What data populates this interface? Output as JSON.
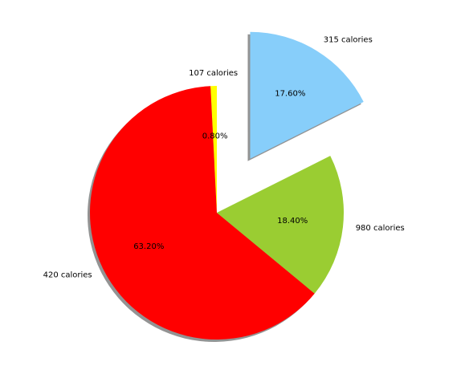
{
  "chart_data": {
    "type": "pie",
    "title": "",
    "start_angle_deg": 90,
    "direction": "counterclockwise",
    "shadow": true,
    "slices": [
      {
        "label": "107 calories",
        "value": 0.8,
        "pct_text": "0.80%",
        "color": "#ffff00",
        "explode": 0
      },
      {
        "label": "420 calories",
        "value": 63.2,
        "pct_text": "63.20%",
        "color": "#ff0000",
        "explode": 0
      },
      {
        "label": "980 calories",
        "value": 18.4,
        "pct_text": "18.40%",
        "color": "#9acd32",
        "explode": 0
      },
      {
        "label": "315 calories",
        "value": 17.6,
        "pct_text": "17.60%",
        "color": "#87cefa",
        "explode": 0.5
      }
    ]
  }
}
